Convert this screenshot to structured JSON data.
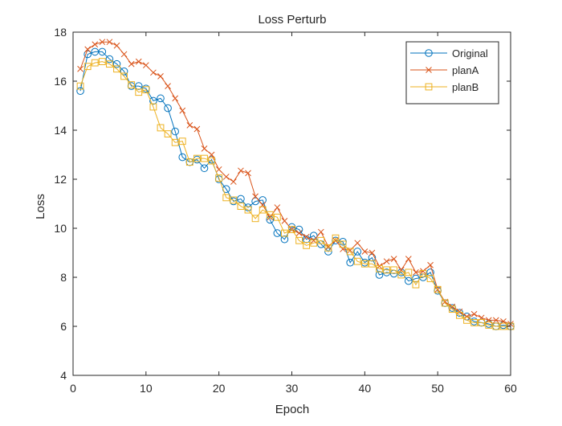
{
  "chart_data": {
    "type": "line",
    "title": "Loss Perturb",
    "xlabel": "Epoch",
    "ylabel": "Loss",
    "xlim": [
      0,
      60
    ],
    "ylim": [
      4,
      18
    ],
    "xticks": [
      0,
      10,
      20,
      30,
      40,
      50,
      60
    ],
    "yticks": [
      4,
      6,
      8,
      10,
      12,
      14,
      16,
      18
    ],
    "grid": false,
    "legend_position": "top-right",
    "x": [
      1,
      2,
      3,
      4,
      5,
      6,
      7,
      8,
      9,
      10,
      11,
      12,
      13,
      14,
      15,
      16,
      17,
      18,
      19,
      20,
      21,
      22,
      23,
      24,
      25,
      26,
      27,
      28,
      29,
      30,
      31,
      32,
      33,
      34,
      35,
      36,
      37,
      38,
      39,
      40,
      41,
      42,
      43,
      44,
      45,
      46,
      47,
      48,
      49,
      50,
      51,
      52,
      53,
      54,
      55,
      56,
      57,
      58,
      59,
      60
    ],
    "series": [
      {
        "name": "Original",
        "color": "#0072BD",
        "marker": "circle",
        "values": [
          15.6,
          17.1,
          17.2,
          17.2,
          16.9,
          16.7,
          16.4,
          15.8,
          15.8,
          15.7,
          15.2,
          15.3,
          14.9,
          13.95,
          12.9,
          12.7,
          12.8,
          12.45,
          12.8,
          12.0,
          11.6,
          11.1,
          11.2,
          10.85,
          11.1,
          11.15,
          10.35,
          9.8,
          9.55,
          10.05,
          9.95,
          9.55,
          9.7,
          9.35,
          9.05,
          9.5,
          9.45,
          8.6,
          9.05,
          8.6,
          8.8,
          8.1,
          8.2,
          8.15,
          8.2,
          7.85,
          7.95,
          8.0,
          8.2,
          7.45,
          6.95,
          6.75,
          6.55,
          6.4,
          6.2,
          6.15,
          6.1,
          6.0,
          6.05,
          6.0
        ]
      },
      {
        "name": "planA",
        "color": "#D95319",
        "marker": "x",
        "values": [
          16.5,
          17.3,
          17.5,
          17.6,
          17.6,
          17.45,
          17.1,
          16.7,
          16.8,
          16.65,
          16.35,
          16.2,
          15.8,
          15.3,
          14.8,
          14.2,
          14.05,
          13.25,
          13.0,
          12.4,
          12.1,
          11.9,
          12.35,
          12.25,
          11.3,
          10.95,
          10.45,
          10.85,
          10.3,
          9.95,
          9.8,
          9.65,
          9.5,
          9.85,
          9.25,
          9.5,
          9.15,
          9.1,
          9.4,
          9.05,
          9.0,
          8.45,
          8.65,
          8.75,
          8.3,
          8.75,
          8.2,
          8.25,
          8.5,
          7.5,
          7.0,
          6.8,
          6.6,
          6.4,
          6.5,
          6.35,
          6.25,
          6.25,
          6.2,
          6.1
        ]
      },
      {
        "name": "planB",
        "color": "#EDB120",
        "marker": "square",
        "values": [
          15.8,
          16.6,
          16.75,
          16.8,
          16.7,
          16.5,
          16.2,
          15.85,
          15.55,
          15.65,
          14.95,
          14.1,
          13.85,
          13.5,
          13.55,
          12.7,
          12.85,
          12.85,
          12.75,
          12.05,
          11.25,
          11.15,
          10.9,
          10.75,
          10.4,
          10.75,
          10.55,
          10.45,
          9.8,
          9.95,
          9.5,
          9.3,
          9.4,
          9.5,
          9.2,
          9.6,
          9.35,
          9.05,
          8.65,
          8.55,
          8.55,
          8.35,
          8.3,
          8.3,
          8.1,
          8.2,
          7.7,
          8.15,
          7.95,
          7.5,
          6.95,
          6.7,
          6.45,
          6.25,
          6.15,
          6.15,
          6.05,
          6.0,
          6.0,
          6.0
        ]
      }
    ]
  }
}
